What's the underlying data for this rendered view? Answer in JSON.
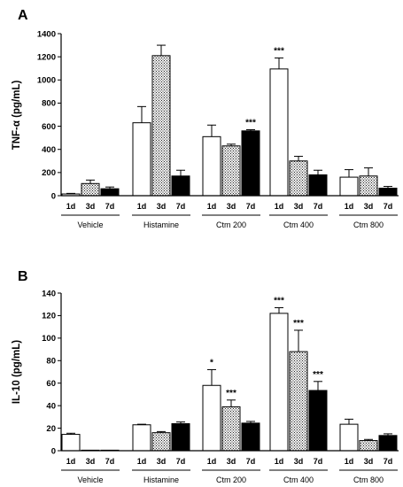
{
  "chart_data": [
    {
      "type": "bar",
      "panel_label": "A",
      "ylabel": "TNF-α (pg/mL)",
      "ylim": [
        0,
        1400
      ],
      "yticks": [
        0,
        200,
        400,
        600,
        800,
        1000,
        1200,
        1400
      ],
      "groups": [
        "Vehicle",
        "Histamine",
        "Ctm 200",
        "Ctm 400",
        "Ctm 800"
      ],
      "subgroups": [
        "1d",
        "3d",
        "7d"
      ],
      "fill_styles": [
        "white",
        "dotted",
        "black"
      ],
      "values": [
        [
          15,
          105,
          60
        ],
        [
          630,
          1210,
          170
        ],
        [
          510,
          430,
          560
        ],
        [
          1095,
          300,
          180
        ],
        [
          160,
          170,
          65
        ]
      ],
      "errors": [
        [
          5,
          30,
          15
        ],
        [
          140,
          90,
          50
        ],
        [
          100,
          15,
          10
        ],
        [
          95,
          40,
          40
        ],
        [
          65,
          70,
          15
        ]
      ],
      "significance": [
        [
          "",
          "",
          ""
        ],
        [
          "",
          "",
          ""
        ],
        [
          "",
          "",
          "***"
        ],
        [
          "***",
          "",
          ""
        ],
        [
          "",
          "",
          ""
        ]
      ]
    },
    {
      "type": "bar",
      "panel_label": "B",
      "ylabel": "IL-10 (pg/mL)",
      "ylim": [
        0,
        140
      ],
      "yticks": [
        0,
        20,
        40,
        60,
        80,
        100,
        120,
        140
      ],
      "groups": [
        "Vehicle",
        "Histamine",
        "Ctm 200",
        "Ctm 400",
        "Ctm 800"
      ],
      "subgroups": [
        "1d",
        "3d",
        "7d"
      ],
      "fill_styles": [
        "white",
        "dotted",
        "black"
      ],
      "values": [
        [
          14.5,
          0.3,
          0.3
        ],
        [
          23,
          16,
          24
        ],
        [
          58,
          39,
          24.5
        ],
        [
          122,
          88,
          53.5
        ],
        [
          23.5,
          9,
          13.5
        ]
      ],
      "errors": [
        [
          1,
          0,
          0
        ],
        [
          0.5,
          1,
          1.5
        ],
        [
          14,
          6,
          1.5
        ],
        [
          5,
          19,
          8
        ],
        [
          4.5,
          1,
          1.5
        ]
      ],
      "significance": [
        [
          "",
          "",
          ""
        ],
        [
          "",
          "",
          ""
        ],
        [
          "*",
          "***",
          ""
        ],
        [
          "***",
          "***",
          "***"
        ],
        [
          "",
          "",
          ""
        ]
      ]
    }
  ]
}
